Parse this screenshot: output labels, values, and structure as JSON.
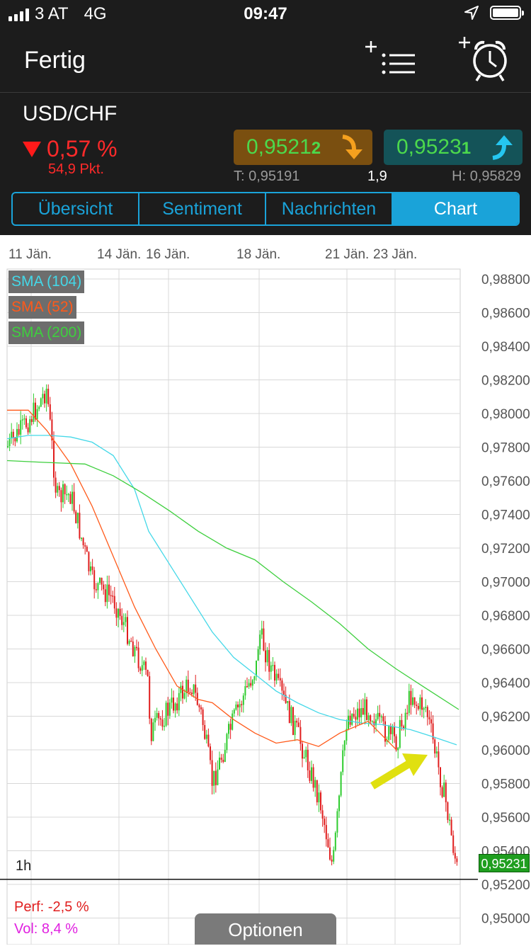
{
  "status_bar": {
    "carrier": "3 AT",
    "network": "4G",
    "time": "09:47"
  },
  "nav": {
    "done_label": "Fertig",
    "watchlist_icon": "add-list-icon",
    "alarm_icon": "add-alarm-clock-icon"
  },
  "instrument": {
    "pair": "USD/CHF",
    "change_pct": "0,57 %",
    "change_pts": "54,9 Pkt.",
    "bid_main": "0,9521",
    "bid_last": "2",
    "ask_main": "0,9523",
    "ask_last": "1",
    "low": "T: 0,95191",
    "spread": "1,9",
    "high": "H: 0,95829"
  },
  "tabs": [
    {
      "label": "Übersicht"
    },
    {
      "label": "Sentiment"
    },
    {
      "label": "Nachrichten"
    },
    {
      "label": "Chart",
      "active": true
    }
  ],
  "chart": {
    "x_labels": [
      "11 Jän.",
      "14 Jän.",
      "16 Jän.",
      "18 Jän.",
      "21 Jän.",
      "23 Jän."
    ],
    "y_labels": [
      "0,98800",
      "0,98600",
      "0,98400",
      "0,98200",
      "0,98000",
      "0,97800",
      "0,97600",
      "0,97400",
      "0,97200",
      "0,97000",
      "0,96800",
      "0,96600",
      "0,96400",
      "0,96200",
      "0,96000",
      "0,95800",
      "0,95600",
      "0,95400",
      "0,95200",
      "0,95000"
    ],
    "indicators": [
      {
        "label": "SMA (104)",
        "color": "#44d8e8"
      },
      {
        "label": "SMA (52)",
        "color": "#ff5a1a"
      },
      {
        "label": "SMA (200)",
        "color": "#3ecf3e"
      }
    ],
    "last_price": "0,95231",
    "timeframe": "1h",
    "perf": "Perf: -2,5 %",
    "vol": "Vol: 8,4 %",
    "options_label": "Optionen",
    "up_color": "#2ecc2e",
    "down_color": "#e01e1e"
  },
  "chart_data": {
    "type": "line",
    "series": [
      {
        "name": "USD/CHF",
        "x": [
          "10 Jän.",
          "10 Jän.",
          "11 Jän.",
          "11 Jän.",
          "12 Jän.",
          "13 Jän.",
          "14 Jän.",
          "14 Jän.",
          "15 Jän.",
          "15 Jän.",
          "16 Jän.",
          "16 Jän.",
          "16 Jän.",
          "17 Jän.",
          "17 Jän.",
          "17 Jän.",
          "18 Jän.",
          "18 Jän.",
          "18 Jän.",
          "19 Jän.",
          "20 Jän.",
          "21 Jän.",
          "21 Jän.",
          "21 Jän.",
          "22 Jän.",
          "22 Jän.",
          "23 Jän.",
          "23 Jän.",
          "23 Jän.",
          "24 Jän.",
          "24 Jän."
        ],
        "values": [
          0.978,
          0.979,
          0.9802,
          0.9815,
          0.975,
          0.9752,
          0.97,
          0.969,
          0.966,
          0.964,
          0.961,
          0.9625,
          0.964,
          0.962,
          0.958,
          0.9618,
          0.965,
          0.967,
          0.964,
          0.961,
          0.957,
          0.953,
          0.962,
          0.9625,
          0.9612,
          0.9605,
          0.9635,
          0.9625,
          0.9628,
          0.9568,
          0.9523
        ]
      },
      {
        "name": "SMA (104)",
        "values": [
          0.9785,
          0.9787,
          0.9787,
          0.9786,
          0.9783,
          0.9775,
          0.9755,
          0.973,
          0.971,
          0.969,
          0.967,
          0.9655,
          0.9645,
          0.9635,
          0.9628,
          0.9622,
          0.9618,
          0.9616,
          0.9615,
          0.9612,
          0.9608,
          0.9603
        ]
      },
      {
        "name": "SMA (52)",
        "values": [
          0.9802,
          0.9802,
          0.979,
          0.977,
          0.9745,
          0.9715,
          0.9685,
          0.966,
          0.9638,
          0.963,
          0.9628,
          0.9618,
          0.961,
          0.9604,
          0.9606,
          0.9602,
          0.961,
          0.9617,
          0.96
        ]
      },
      {
        "name": "SMA (200)",
        "values": [
          0.9772,
          0.9771,
          0.977,
          0.9763,
          0.9753,
          0.9742,
          0.973,
          0.972,
          0.9713,
          0.97,
          0.9688,
          0.9675,
          0.966,
          0.9648,
          0.9637,
          0.9624
        ]
      }
    ],
    "ylim": [
      0.95,
      0.9888
    ],
    "grid": true
  }
}
